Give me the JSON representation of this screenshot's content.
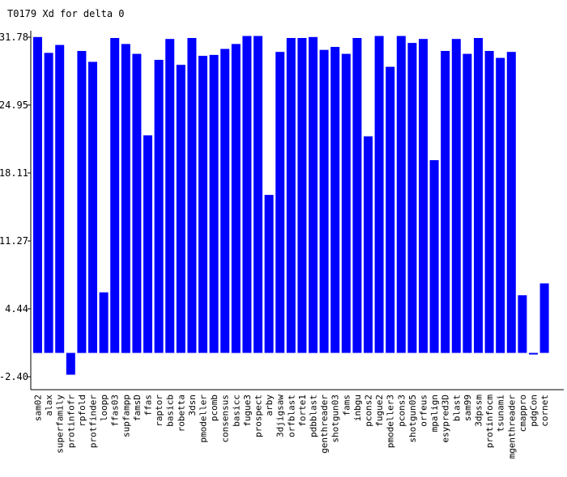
{
  "chart_data": {
    "type": "bar",
    "title": "T0179 Xd for delta 0",
    "xlabel": "",
    "ylabel": "",
    "y_ticks": [
      "31.78",
      "24.95",
      "18.11",
      "11.27",
      "4.44",
      "-2.40"
    ],
    "ylim": [
      -2.4,
      31.78
    ],
    "grid": false,
    "bar_color": "#0000ff",
    "categories": [
      "sam02",
      "alax",
      "superfamily",
      "protinfofr",
      "rpfold",
      "protfinder",
      "loopp",
      "ffas03",
      "supfampp",
      "famsD",
      "ffas",
      "raptor",
      "basicb",
      "robetta",
      "3dsn",
      "pmodeller",
      "pcomb",
      "consensus",
      "basicc",
      "fugue3",
      "prospect",
      "arby",
      "3djigsaw",
      "orfblast",
      "forte1",
      "pdbblast",
      "genthreader",
      "shotgun03",
      "fams",
      "inbgu",
      "pcons2",
      "fugue2",
      "pmodeller3",
      "pcons3",
      "shotgun05",
      "orfeus",
      "mpalign",
      "esypred3D",
      "blast",
      "sam99",
      "3dpssm",
      "protinfocm",
      "tsunami",
      "mgenthreader",
      "cmappro",
      "pdgCon",
      "cornet"
    ],
    "values": [
      31.8,
      30.2,
      31.0,
      -2.2,
      30.4,
      29.3,
      6.1,
      31.7,
      31.1,
      30.1,
      21.9,
      29.5,
      31.6,
      29.0,
      31.7,
      29.9,
      30.0,
      30.6,
      31.1,
      31.9,
      31.9,
      15.9,
      30.3,
      31.7,
      31.7,
      31.8,
      30.5,
      30.8,
      30.1,
      31.7,
      21.8,
      31.9,
      28.8,
      31.9,
      31.2,
      31.6,
      19.4,
      30.4,
      31.6,
      30.1,
      31.7,
      30.4,
      29.7,
      30.3,
      5.8,
      -0.1,
      7.0
    ]
  }
}
